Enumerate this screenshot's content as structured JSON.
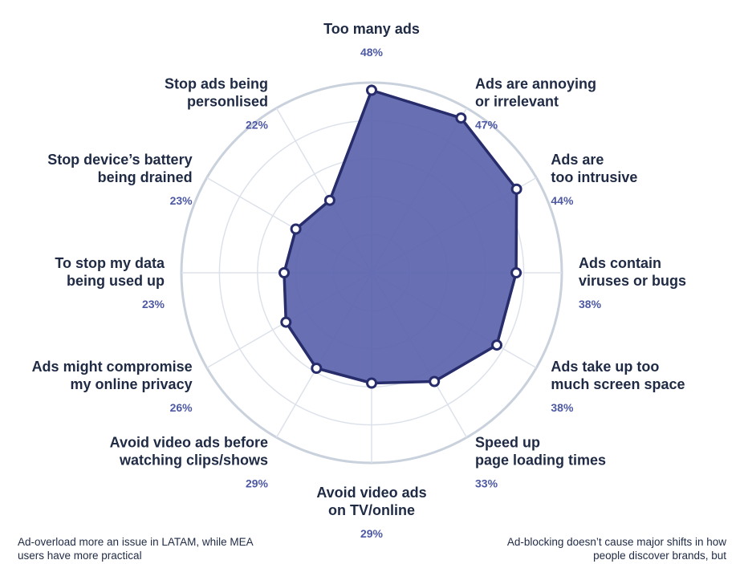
{
  "chart_data": {
    "type": "radar",
    "categories": [
      "Too many ads",
      "Ads are annoying or irrelevant",
      "Ads are too intrusive",
      "Ads contain viruses or bugs",
      "Ads take up too much screen space",
      "Speed up page loading times",
      "Avoid video ads on TV/online",
      "Avoid video ads before watching clips/shows",
      "Ads might compromise my online privacy",
      "To stop my data being used up",
      "Stop device's battery being drained",
      "Stop ads being personlised"
    ],
    "label_lines": [
      [
        "Too many ads"
      ],
      [
        "Ads are annoying",
        "or irrelevant"
      ],
      [
        "Ads are",
        "too intrusive"
      ],
      [
        "Ads contain",
        "viruses or bugs"
      ],
      [
        "Ads take up too",
        "much screen space"
      ],
      [
        "Speed up",
        "page loading times"
      ],
      [
        "Avoid video ads",
        "on TV/online"
      ],
      [
        "Avoid video ads before",
        "watching clips/shows"
      ],
      [
        "Ads might compromise",
        "my online privacy"
      ],
      [
        "To stop my data",
        "being used up"
      ],
      [
        "Stop device’s battery",
        "being drained"
      ],
      [
        "Stop ads being",
        "personlised"
      ]
    ],
    "values": [
      48,
      47,
      44,
      38,
      38,
      33,
      29,
      29,
      26,
      23,
      23,
      22
    ],
    "value_labels": [
      "48%",
      "47%",
      "44%",
      "38%",
      "38%",
      "33%",
      "29%",
      "29%",
      "26%",
      "23%",
      "23%",
      "22%"
    ],
    "rmax": 50,
    "grid": true,
    "colors": {
      "fill": "#5b63ad",
      "stroke": "#272c6b",
      "grid": "#dde2ea",
      "outer_ring": "#c9d1dd",
      "label": "#1f2a44",
      "value": "#4d59a3"
    }
  },
  "footer": {
    "left": "Ad-overload more an issue in LATAM, while MEA users have more practical",
    "right": "Ad-blocking doesn’t cause major shifts in how people discover brands, but"
  }
}
